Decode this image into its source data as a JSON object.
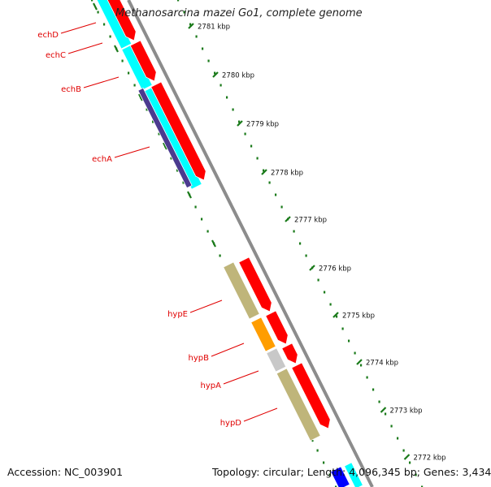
{
  "title": "Methanosarcina mazei Go1, complete genome",
  "footer": {
    "accession": "Accession: NC_003901",
    "summary": "Topology: circular; Length: 4,096,345 bp; Genes: 3,434"
  },
  "scale": {
    "unit": "kbp",
    "ticks": [
      {
        "value": 2781,
        "label": "2781 kbp"
      },
      {
        "value": 2780,
        "label": "2780 kbp"
      },
      {
        "value": 2779,
        "label": "2779 kbp"
      },
      {
        "value": 2778,
        "label": "2778 kbp"
      },
      {
        "value": 2777,
        "label": "2777 kbp"
      },
      {
        "value": 2776,
        "label": "2776 kbp"
      },
      {
        "value": 2775,
        "label": "2775 kbp"
      },
      {
        "value": 2774,
        "label": "2774 kbp"
      },
      {
        "value": 2773,
        "label": "2773 kbp"
      },
      {
        "value": 2772,
        "label": "2772 kbp"
      }
    ]
  },
  "gene_labels": [
    "echD",
    "echC",
    "echB",
    "echA",
    "hypE",
    "hypB",
    "hypA",
    "hypD"
  ],
  "colors": {
    "cds_arrow": "#ff0000",
    "backbone": "#8c8c8c",
    "cog_cyan": "#00ffff",
    "cog_purple": "#4b3b8f",
    "cog_olive": "#bfb57a",
    "cog_orange": "#ff9d00",
    "cog_grey": "#c8c8c8",
    "cog_blue": "#0000ff",
    "label_red": "#e00000",
    "tick_green": "#1a7a1a"
  }
}
